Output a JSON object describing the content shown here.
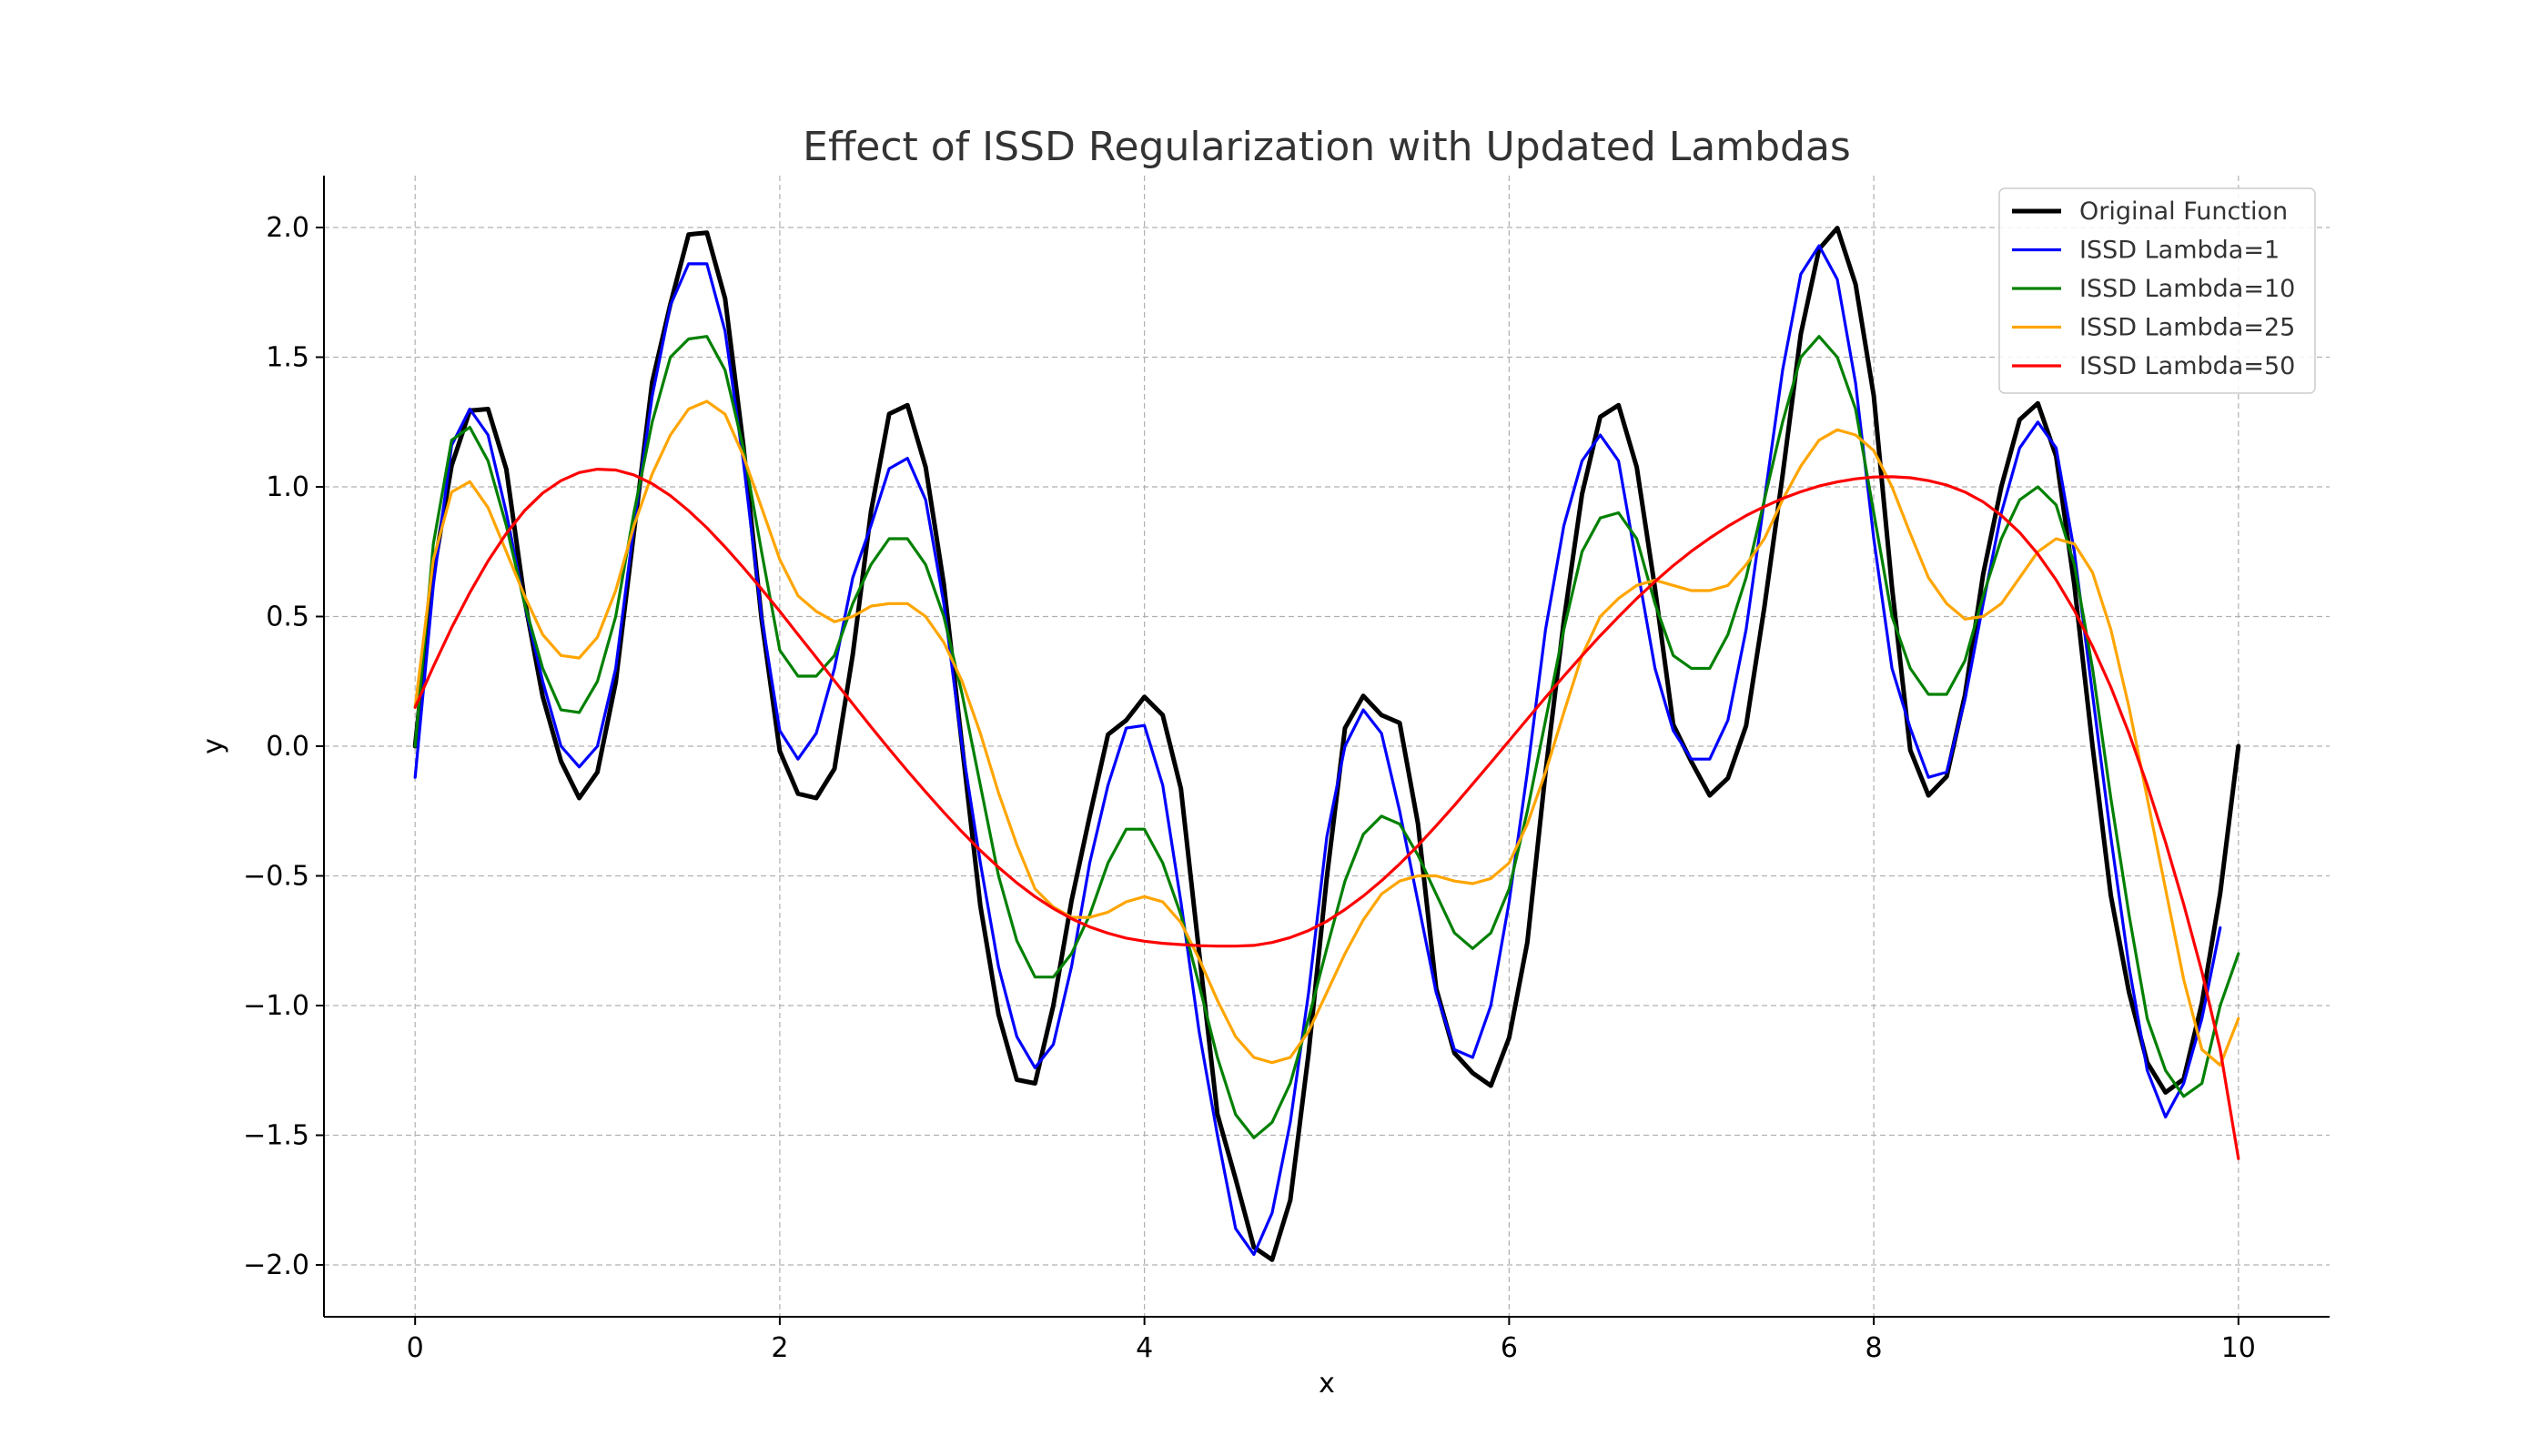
{
  "chart_data": {
    "type": "line",
    "title": "Effect of ISSD Regularization with Updated Lambdas",
    "xlabel": "x",
    "ylabel": "y",
    "xlim": [
      -0.5,
      10.5
    ],
    "ylim": [
      -2.2,
      2.2
    ],
    "xticks": [
      0,
      2,
      4,
      6,
      8,
      10
    ],
    "xtick_labels": [
      "0",
      "2",
      "4",
      "6",
      "8",
      "10"
    ],
    "yticks": [
      -2.0,
      -1.5,
      -1.0,
      -0.5,
      0.0,
      0.5,
      1.0,
      1.5,
      2.0
    ],
    "ytick_labels": [
      "−2.0",
      "−1.5",
      "−1.0",
      "−0.5",
      "0.0",
      "0.5",
      "1.0",
      "1.5",
      "2.0"
    ],
    "grid": true,
    "legend_position": "top-right",
    "x": [
      0.0,
      0.1,
      0.2,
      0.3,
      0.4,
      0.5,
      0.6,
      0.7,
      0.8,
      0.9,
      1.0,
      1.1,
      1.2,
      1.3,
      1.4,
      1.5,
      1.6,
      1.7,
      1.8,
      1.9,
      2.0,
      2.1,
      2.2,
      2.3,
      2.4,
      2.5,
      2.6,
      2.7,
      2.8,
      2.9,
      3.0,
      3.1,
      3.2,
      3.3,
      3.4,
      3.5,
      3.6,
      3.7,
      3.8,
      3.9,
      4.0,
      4.1,
      4.2,
      4.3,
      4.4,
      4.5,
      4.6,
      4.7,
      4.8,
      4.9,
      5.0,
      5.1,
      5.2,
      5.3,
      5.4,
      5.5,
      5.6,
      5.7,
      5.8,
      5.9,
      6.0,
      6.1,
      6.2,
      6.3,
      6.4,
      6.5,
      6.6,
      6.7,
      6.8,
      6.9,
      7.0,
      7.1,
      7.2,
      7.3,
      7.4,
      7.5,
      7.6,
      7.7,
      7.8,
      7.9,
      8.0,
      8.1,
      8.2,
      8.3,
      8.4,
      8.5,
      8.6,
      8.7,
      8.8,
      8.9,
      9.0,
      9.1,
      9.2,
      9.3,
      9.4,
      9.5,
      9.6,
      9.7,
      9.8,
      9.9,
      10.0
    ],
    "series": [
      {
        "name": "Original Function",
        "color": "#000000",
        "values": [
          0.0,
          0.665,
          1.082,
          1.294,
          1.3,
          1.068,
          0.566,
          0.191,
          -0.058,
          -0.2,
          -0.1,
          0.246,
          0.824,
          1.404,
          1.705,
          1.973,
          1.98,
          1.726,
          1.162,
          0.49,
          -0.019,
          -0.183,
          -0.2,
          -0.087,
          0.353,
          0.904,
          1.281,
          1.315,
          1.076,
          0.624,
          0.0,
          -0.615,
          -1.035,
          -1.286,
          -1.3,
          -1.0,
          -0.596,
          -0.269,
          0.045,
          0.1,
          0.19,
          0.12,
          -0.164,
          -0.795,
          -1.419,
          -1.668,
          -1.932,
          -1.98,
          -1.75,
          -1.184,
          -0.507,
          0.07,
          0.194,
          0.12,
          0.09,
          -0.299,
          -0.934,
          -1.183,
          -1.26,
          -1.309,
          -1.124,
          -0.756,
          -0.1,
          0.483,
          0.972,
          1.27,
          1.315,
          1.076,
          0.608,
          0.084,
          -0.06,
          -0.19,
          -0.123,
          0.079,
          0.537,
          1.045,
          1.589,
          1.917,
          1.998,
          1.781,
          1.351,
          0.613,
          -0.015,
          -0.19,
          -0.117,
          0.197,
          0.663,
          1.001,
          1.259,
          1.322,
          1.118,
          0.622,
          -0.0,
          -0.576,
          -0.949,
          -1.22,
          -1.335,
          -1.283,
          -0.99,
          -0.567,
          -0.0
        ]
      },
      {
        "name": "ISSD Lambda=1",
        "color": "#0000ff",
        "values": [
          -0.12,
          0.62,
          1.16,
          1.3,
          1.2,
          0.9,
          0.55,
          0.25,
          0.0,
          -0.08,
          0.0,
          0.3,
          0.85,
          1.35,
          1.7,
          1.86,
          1.86,
          1.6,
          1.1,
          0.5,
          0.06,
          -0.05,
          0.05,
          0.3,
          0.65,
          0.85,
          1.07,
          1.11,
          0.95,
          0.55,
          0.0,
          -0.45,
          -0.85,
          -1.12,
          -1.24,
          -1.15,
          -0.85,
          -0.45,
          -0.15,
          0.07,
          0.08,
          -0.15,
          -0.6,
          -1.1,
          -1.5,
          -1.86,
          -1.96,
          -1.8,
          -1.45,
          -0.95,
          -0.35,
          0.0,
          0.14,
          0.05,
          -0.25,
          -0.6,
          -0.95,
          -1.17,
          -1.2,
          -1.0,
          -0.6,
          -0.1,
          0.45,
          0.85,
          1.1,
          1.2,
          1.1,
          0.7,
          0.3,
          0.06,
          -0.05,
          -0.05,
          0.1,
          0.45,
          0.95,
          1.45,
          1.82,
          1.93,
          1.8,
          1.4,
          0.8,
          0.3,
          0.07,
          -0.12,
          -0.1,
          0.18,
          0.55,
          0.9,
          1.15,
          1.25,
          1.15,
          0.75,
          0.2,
          -0.35,
          -0.85,
          -1.25,
          -1.43,
          -1.3,
          -1.05,
          -0.7,
          null
        ]
      },
      {
        "name": "ISSD Lambda=10",
        "color": "#008000",
        "values": [
          0.0,
          0.78,
          1.18,
          1.23,
          1.1,
          0.85,
          0.55,
          0.3,
          0.14,
          0.13,
          0.25,
          0.5,
          0.9,
          1.25,
          1.5,
          1.57,
          1.58,
          1.45,
          1.15,
          0.75,
          0.37,
          0.27,
          0.27,
          0.35,
          0.55,
          0.7,
          0.8,
          0.8,
          0.7,
          0.5,
          0.2,
          -0.15,
          -0.5,
          -0.75,
          -0.89,
          -0.89,
          -0.8,
          -0.65,
          -0.45,
          -0.32,
          -0.32,
          -0.45,
          -0.65,
          -0.92,
          -1.2,
          -1.42,
          -1.51,
          -1.45,
          -1.3,
          -1.05,
          -0.78,
          -0.52,
          -0.34,
          -0.27,
          -0.3,
          -0.42,
          -0.57,
          -0.72,
          -0.78,
          -0.72,
          -0.55,
          -0.25,
          0.1,
          0.45,
          0.75,
          0.88,
          0.9,
          0.8,
          0.55,
          0.35,
          0.3,
          0.3,
          0.43,
          0.65,
          0.95,
          1.25,
          1.5,
          1.58,
          1.5,
          1.3,
          0.9,
          0.5,
          0.3,
          0.2,
          0.2,
          0.33,
          0.58,
          0.8,
          0.95,
          1.0,
          0.93,
          0.7,
          0.3,
          -0.2,
          -0.65,
          -1.05,
          -1.25,
          -1.35,
          -1.3,
          -1.0,
          -0.8
        ]
      },
      {
        "name": "ISSD Lambda=25",
        "color": "#ffa500",
        "values": [
          0.15,
          0.72,
          0.98,
          1.02,
          0.92,
          0.75,
          0.58,
          0.43,
          0.35,
          0.34,
          0.42,
          0.6,
          0.85,
          1.05,
          1.2,
          1.3,
          1.33,
          1.28,
          1.12,
          0.92,
          0.72,
          0.58,
          0.52,
          0.48,
          0.5,
          0.54,
          0.55,
          0.55,
          0.5,
          0.4,
          0.25,
          0.05,
          -0.18,
          -0.38,
          -0.55,
          -0.62,
          -0.66,
          -0.66,
          -0.64,
          -0.6,
          -0.58,
          -0.6,
          -0.68,
          -0.82,
          -0.98,
          -1.12,
          -1.2,
          -1.22,
          -1.2,
          -1.1,
          -0.95,
          -0.8,
          -0.67,
          -0.57,
          -0.52,
          -0.5,
          -0.5,
          -0.52,
          -0.53,
          -0.51,
          -0.45,
          -0.3,
          -0.1,
          0.13,
          0.35,
          0.5,
          0.57,
          0.62,
          0.64,
          0.62,
          0.6,
          0.6,
          0.62,
          0.7,
          0.8,
          0.95,
          1.08,
          1.18,
          1.22,
          1.2,
          1.14,
          1.0,
          0.82,
          0.65,
          0.55,
          0.49,
          0.5,
          0.55,
          0.65,
          0.75,
          0.8,
          0.78,
          0.67,
          0.45,
          0.15,
          -0.2,
          -0.55,
          -0.9,
          -1.17,
          -1.23,
          -1.05
        ]
      },
      {
        "name": "ISSD Lambda=50",
        "color": "#ff0000",
        "values": [
          0.15,
          0.307,
          0.457,
          0.592,
          0.714,
          0.82,
          0.908,
          0.976,
          1.024,
          1.055,
          1.068,
          1.065,
          1.046,
          1.012,
          0.966,
          0.908,
          0.842,
          0.768,
          0.689,
          0.606,
          0.52,
          0.431,
          0.342,
          0.252,
          0.163,
          0.075,
          -0.011,
          -0.095,
          -0.176,
          -0.255,
          -0.331,
          -0.402,
          -0.467,
          -0.527,
          -0.58,
          -0.626,
          -0.665,
          -0.697,
          -0.721,
          -0.74,
          -0.752,
          -0.76,
          -0.765,
          -0.769,
          -0.771,
          -0.771,
          -0.768,
          -0.757,
          -0.738,
          -0.711,
          -0.675,
          -0.63,
          -0.578,
          -0.519,
          -0.454,
          -0.383,
          -0.307,
          -0.228,
          -0.146,
          -0.063,
          0.021,
          0.105,
          0.188,
          0.27,
          0.349,
          0.426,
          0.499,
          0.569,
          0.635,
          0.696,
          0.752,
          0.802,
          0.848,
          0.889,
          0.924,
          0.955,
          0.981,
          1.003,
          1.019,
          1.031,
          1.038,
          1.039,
          1.035,
          1.024,
          1.007,
          0.98,
          0.942,
          0.89,
          0.824,
          0.741,
          0.641,
          0.523,
          0.385,
          0.228,
          0.049,
          -0.15,
          -0.37,
          -0.61,
          -0.87,
          -1.17,
          -1.59
        ]
      }
    ]
  }
}
